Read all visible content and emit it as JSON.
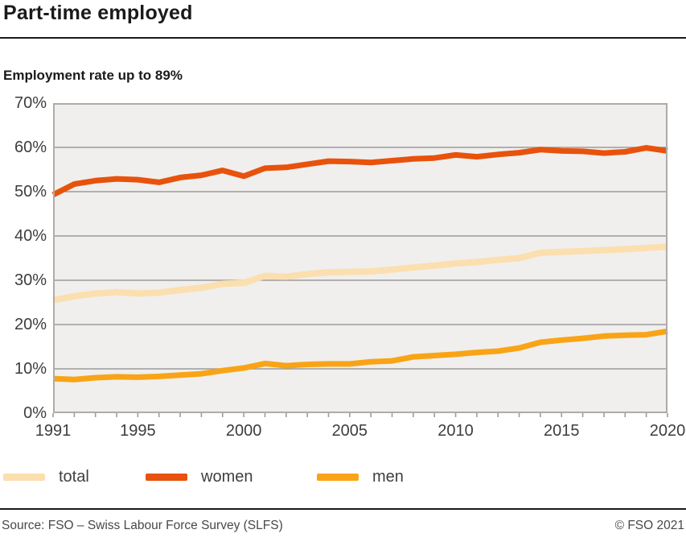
{
  "header": {
    "title": "Part-time employed",
    "subtitle": "Employment rate up to 89%"
  },
  "chart_data": {
    "type": "line",
    "title": "Part-time employed",
    "subtitle": "Employment rate up to 89%",
    "x": [
      1991,
      1992,
      1993,
      1994,
      1995,
      1996,
      1997,
      1998,
      1999,
      2000,
      2001,
      2002,
      2003,
      2004,
      2005,
      2006,
      2007,
      2008,
      2009,
      2010,
      2011,
      2012,
      2013,
      2014,
      2015,
      2016,
      2017,
      2018,
      2019,
      2020
    ],
    "series": [
      {
        "name": "total",
        "color": "#fbdfaf",
        "stroke_width": 8,
        "values": [
          25.5,
          26.4,
          27.0,
          27.3,
          27.0,
          27.2,
          27.8,
          28.3,
          29.2,
          29.4,
          31.0,
          30.8,
          31.4,
          31.8,
          31.9,
          32.0,
          32.4,
          32.9,
          33.3,
          33.8,
          34.1,
          34.6,
          35.0,
          36.2,
          36.4,
          36.6,
          36.8,
          37.0,
          37.3,
          37.6
        ]
      },
      {
        "name": "women",
        "color": "#e8520c",
        "stroke_width": 7,
        "values": [
          49.3,
          51.7,
          52.5,
          52.9,
          52.7,
          52.1,
          53.2,
          53.7,
          54.8,
          53.5,
          55.3,
          55.5,
          56.2,
          56.9,
          56.8,
          56.6,
          57.0,
          57.4,
          57.6,
          58.3,
          57.9,
          58.4,
          58.8,
          59.5,
          59.2,
          59.1,
          58.7,
          59.0,
          59.9,
          59.2
        ]
      },
      {
        "name": "men",
        "color": "#f9a416",
        "stroke_width": 7,
        "values": [
          7.8,
          7.6,
          8.0,
          8.2,
          8.1,
          8.3,
          8.6,
          8.9,
          9.6,
          10.2,
          11.2,
          10.7,
          11.0,
          11.1,
          11.1,
          11.6,
          11.8,
          12.7,
          13.0,
          13.3,
          13.7,
          14.0,
          14.7,
          16.0,
          16.5,
          16.9,
          17.4,
          17.6,
          17.7,
          18.5
        ]
      }
    ],
    "ylim": [
      0,
      70
    ],
    "y_tick_labels": [
      "0%",
      "10%",
      "20%",
      "30%",
      "40%",
      "50%",
      "60%",
      "70%"
    ],
    "x_tick_years": [
      1991,
      1995,
      2000,
      2005,
      2010,
      2015,
      2020
    ],
    "grid": true,
    "legend_position": "bottom",
    "plot_bg": "#f0efed",
    "grid_color": "#9c9c9c",
    "border_color": "#aeaba8",
    "tick_color": "#9c9c9c"
  },
  "legend": {
    "item_offsets": [
      4,
      181,
      394
    ]
  },
  "footer": {
    "source": "Source: FSO – Swiss Labour Force Survey (SLFS)",
    "copyright": "© FSO 2021"
  }
}
